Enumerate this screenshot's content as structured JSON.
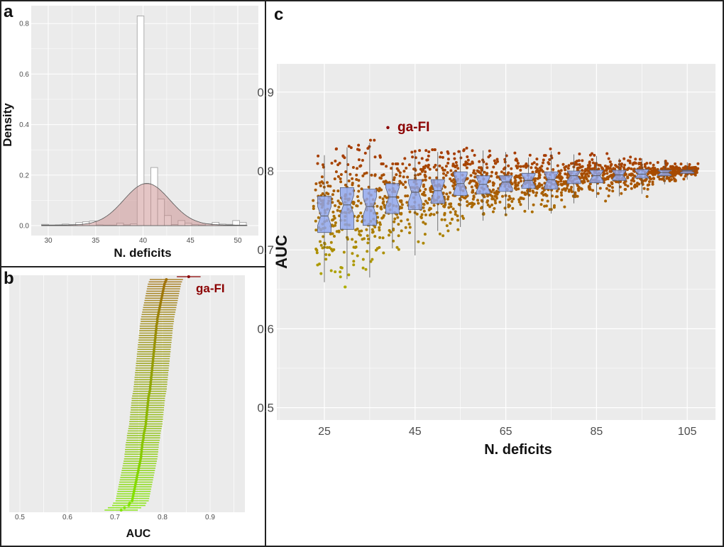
{
  "chart_data": [
    {
      "panel": "a",
      "type": "bar",
      "xlabel": "N. deficits",
      "ylabel": "Density",
      "xlim": [
        29,
        51.5
      ],
      "ylim": [
        -0.04,
        0.87
      ],
      "xticks": [
        30,
        35,
        40,
        45,
        50
      ],
      "yticks": [
        "0.0",
        "0.2",
        "0.4",
        "0.6",
        "0.8"
      ],
      "grid": true,
      "bin_width": 0.72,
      "bin_starts": [
        29.3,
        30.02,
        30.74,
        31.46,
        32.18,
        32.9,
        33.62,
        34.34,
        35.06,
        35.78,
        36.5,
        37.22,
        37.94,
        38.66,
        39.38,
        40.1,
        40.82,
        41.54,
        42.26,
        42.98,
        43.7,
        44.42,
        45.14,
        45.86,
        46.58,
        47.3,
        48.02,
        48.74,
        49.46,
        50.18
      ],
      "densities": [
        0.005,
        0.002,
        0.003,
        0.006,
        0.004,
        0.012,
        0.015,
        0.018,
        0.003,
        0.002,
        0.002,
        0.01,
        0.003,
        0.007,
        0.83,
        0.165,
        0.23,
        0.105,
        0.04,
        0.004,
        0.02,
        0.01,
        0.004,
        0.003,
        0.007,
        0.013,
        0.006,
        0.005,
        0.02,
        0.013
      ],
      "density_curve": {
        "mean": 40.4,
        "sd": 2.42,
        "peak": 0.165,
        "fill": "#c98c8c"
      }
    },
    {
      "panel": "b",
      "type": "scatter",
      "xlabel": "AUC",
      "xlim": [
        0.475,
        0.97
      ],
      "xticks": [
        "0.5",
        "0.6",
        "0.7",
        "0.8",
        "0.9"
      ],
      "grid": true,
      "ci_half_width": 0.035,
      "auc_means": [
        0.808,
        0.806,
        0.804,
        0.803,
        0.802,
        0.801,
        0.8,
        0.799,
        0.798,
        0.797,
        0.796,
        0.795,
        0.794,
        0.793,
        0.792,
        0.791,
        0.79,
        0.789,
        0.789,
        0.788,
        0.787,
        0.787,
        0.786,
        0.786,
        0.785,
        0.785,
        0.784,
        0.784,
        0.783,
        0.783,
        0.782,
        0.782,
        0.781,
        0.781,
        0.78,
        0.78,
        0.779,
        0.779,
        0.778,
        0.778,
        0.777,
        0.777,
        0.776,
        0.776,
        0.775,
        0.775,
        0.774,
        0.774,
        0.773,
        0.772,
        0.771,
        0.77,
        0.77,
        0.769,
        0.769,
        0.768,
        0.768,
        0.767,
        0.767,
        0.766,
        0.766,
        0.765,
        0.765,
        0.764,
        0.763,
        0.762,
        0.761,
        0.76,
        0.76,
        0.759,
        0.758,
        0.757,
        0.757,
        0.756,
        0.756,
        0.755,
        0.755,
        0.754,
        0.753,
        0.752,
        0.751,
        0.75,
        0.749,
        0.748,
        0.747,
        0.746,
        0.745,
        0.744,
        0.743,
        0.742,
        0.741,
        0.74,
        0.739,
        0.738,
        0.737,
        0.736,
        0.731,
        0.729,
        0.72,
        0.713
      ],
      "color_high": "#a0700a",
      "color_low": "#80e800",
      "highlight": {
        "label": "ga-FI",
        "auc": 0.855,
        "ci": [
          0.83,
          0.88
        ],
        "color": "#8b0000"
      }
    },
    {
      "panel": "c",
      "type": "box",
      "xlabel": "N. deficits",
      "ylabel": "AUC",
      "xlim": [
        20.5,
        112
      ],
      "ylim": [
        0.475,
        0.925
      ],
      "xticks": [
        "25",
        "45",
        "65",
        "85",
        "105"
      ],
      "yticks": [
        "0.5",
        "0.6",
        "0.7",
        "0.8",
        "0.9"
      ],
      "grid": true,
      "box_fill": "#8fa6ee",
      "point_color_low": "#b0c400",
      "point_color_high": "#a63c00",
      "boxes": [
        {
          "n": 25,
          "low": 0.659,
          "q1": 0.722,
          "median": 0.743,
          "q3": 0.768,
          "high": 0.82
        },
        {
          "n": 30,
          "low": 0.663,
          "q1": 0.726,
          "median": 0.757,
          "q3": 0.779,
          "high": 0.83
        },
        {
          "n": 35,
          "low": 0.665,
          "q1": 0.731,
          "median": 0.755,
          "q3": 0.777,
          "high": 0.836
        },
        {
          "n": 40,
          "low": 0.702,
          "q1": 0.746,
          "median": 0.767,
          "q3": 0.784,
          "high": 0.806
        },
        {
          "n": 45,
          "low": 0.693,
          "q1": 0.751,
          "median": 0.773,
          "q3": 0.789,
          "high": 0.823
        },
        {
          "n": 50,
          "low": 0.724,
          "q1": 0.759,
          "median": 0.775,
          "q3": 0.789,
          "high": 0.824
        },
        {
          "n": 55,
          "low": 0.729,
          "q1": 0.769,
          "median": 0.784,
          "q3": 0.799,
          "high": 0.826
        },
        {
          "n": 60,
          "low": 0.737,
          "q1": 0.771,
          "median": 0.783,
          "q3": 0.794,
          "high": 0.826
        },
        {
          "n": 65,
          "low": 0.743,
          "q1": 0.774,
          "median": 0.786,
          "q3": 0.794,
          "high": 0.824
        },
        {
          "n": 70,
          "low": 0.751,
          "q1": 0.778,
          "median": 0.788,
          "q3": 0.797,
          "high": 0.817
        },
        {
          "n": 75,
          "low": 0.746,
          "q1": 0.777,
          "median": 0.789,
          "q3": 0.799,
          "high": 0.825
        },
        {
          "n": 80,
          "low": 0.759,
          "q1": 0.784,
          "median": 0.794,
          "q3": 0.8,
          "high": 0.821
        },
        {
          "n": 85,
          "low": 0.766,
          "q1": 0.785,
          "median": 0.794,
          "q3": 0.801,
          "high": 0.819
        },
        {
          "n": 90,
          "low": 0.768,
          "q1": 0.788,
          "median": 0.795,
          "q3": 0.801,
          "high": 0.816
        },
        {
          "n": 95,
          "low": 0.771,
          "q1": 0.791,
          "median": 0.796,
          "q3": 0.802,
          "high": 0.816
        },
        {
          "n": 100,
          "low": 0.783,
          "q1": 0.794,
          "median": 0.798,
          "q3": 0.801,
          "high": 0.813
        },
        {
          "n": 105,
          "low": 0.789,
          "q1": 0.797,
          "median": 0.8,
          "q3": 0.801,
          "high": 0.811
        }
      ],
      "highlight": {
        "label": "ga-FI",
        "n": 39,
        "auc": 0.855,
        "color": "#8b0000"
      }
    }
  ],
  "panel_labels": {
    "a": "a",
    "b": "b",
    "c": "c"
  }
}
